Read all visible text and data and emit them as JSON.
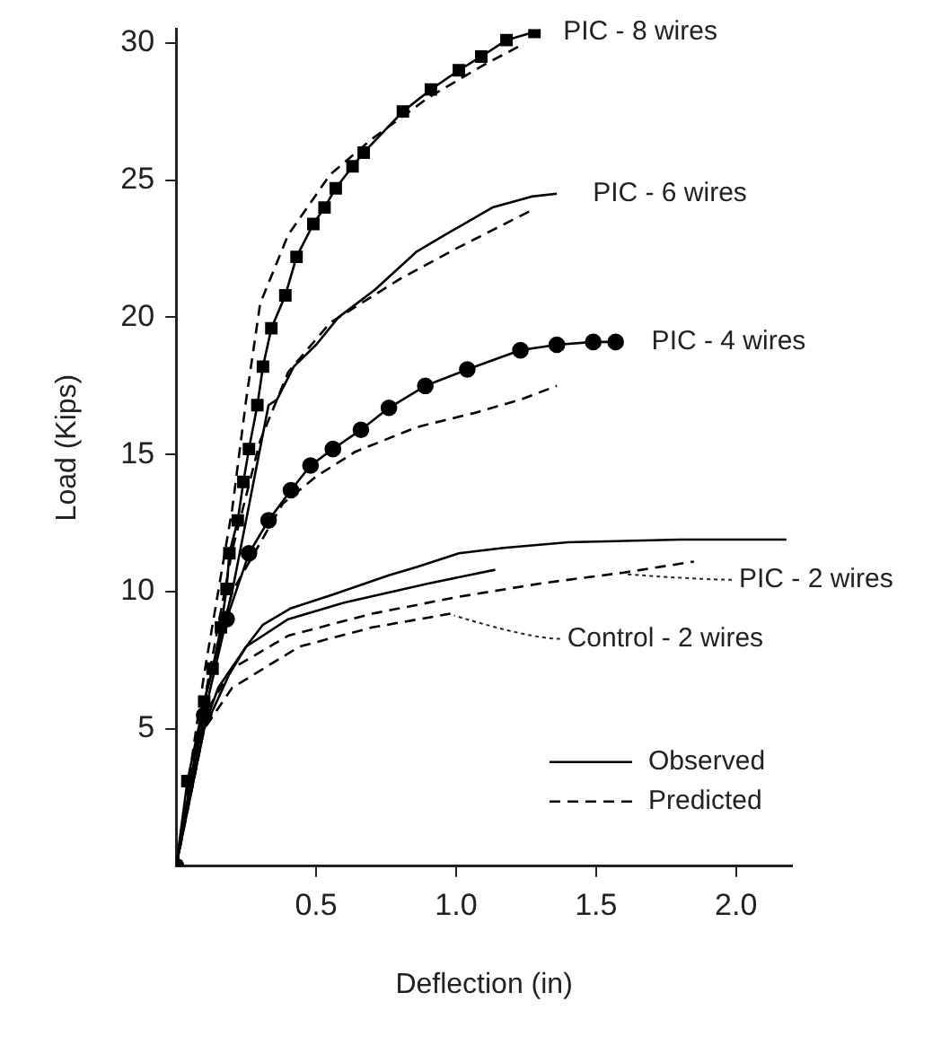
{
  "chart_data": {
    "type": "line",
    "xlabel": "Deflection (in)",
    "ylabel": "Load (Kips)",
    "xlim": [
      0,
      2.2
    ],
    "ylim": [
      0,
      30.5
    ],
    "xticks": [
      0.5,
      {
        "value": 1,
        "label": "1.0"
      },
      1.5,
      {
        "value": 2,
        "label": "2.0"
      }
    ],
    "yticks": [
      5,
      10,
      15,
      20,
      25,
      30
    ],
    "grid": false,
    "legend": "bottom right",
    "series": [
      {
        "name": "Observed",
        "color": "#000000",
        "line_style": "solid",
        "marker": "square",
        "x": [
          0,
          0.04,
          0.1,
          0.13,
          0.16,
          0.18,
          0.19,
          0.22,
          0.24,
          0.26,
          0.29,
          0.31,
          0.34,
          0.39,
          0.43,
          0.49,
          0.53,
          0.57,
          0.63,
          0.67,
          0.81,
          0.91,
          1.01,
          1.09,
          1.18,
          1.28
        ],
        "values": [
          0,
          3.1,
          6,
          7.2,
          8.7,
          10.1,
          11.4,
          12.6,
          14,
          15.2,
          16.8,
          18.2,
          19.6,
          20.8,
          22.2,
          23.4,
          24,
          24.7,
          25.5,
          26,
          27.5,
          28.3,
          29,
          29.5,
          30.1,
          30.4
        ]
      },
      {
        "name": "Predicted",
        "color": "#000000",
        "line_style": "dashed",
        "marker": "none",
        "x": [
          0,
          0.1,
          0.2,
          0.25,
          0.3,
          0.4,
          0.55,
          0.7,
          0.9,
          1.1,
          1.23
        ],
        "values": [
          0,
          7,
          13,
          17,
          20.5,
          23,
          25.2,
          26.5,
          28,
          29.2,
          29.9
        ]
      },
      {
        "color": "#000000",
        "line_style": "solid",
        "marker": "none",
        "x": [
          0,
          0.1,
          0.2,
          0.33,
          0.36,
          0.42,
          0.5,
          0.58,
          0.71,
          0.86,
          0.96,
          1.13,
          1.27,
          1.36
        ],
        "values": [
          0,
          6,
          10,
          16.8,
          17,
          18.2,
          19,
          20,
          21,
          22.4,
          23,
          24,
          24.4,
          24.5
        ]
      },
      {
        "color": "#000000",
        "line_style": "dashed",
        "marker": "none",
        "x": [
          0,
          0.1,
          0.2,
          0.3,
          0.4,
          0.55,
          0.8,
          1,
          1.27
        ],
        "values": [
          0,
          6,
          11.5,
          15.5,
          18,
          19.8,
          21.4,
          22.5,
          23.9
        ]
      },
      {
        "color": "#000000",
        "line_style": "solid",
        "marker": "circle",
        "x": [
          0,
          0.1,
          0.18,
          0.26,
          0.33,
          0.41,
          0.48,
          0.56,
          0.66,
          0.76,
          0.89,
          1.04,
          1.23,
          1.36,
          1.49,
          1.57
        ],
        "values": [
          0,
          5.5,
          9,
          11.4,
          12.6,
          13.7,
          14.6,
          15.2,
          15.9,
          16.7,
          17.5,
          18.1,
          18.8,
          19,
          19.1,
          19.1
        ]
      },
      {
        "color": "#000000",
        "line_style": "dashed",
        "marker": "none",
        "x": [
          0,
          0.1,
          0.2,
          0.38,
          0.5,
          0.64,
          0.86,
          1.06,
          1.23,
          1.36
        ],
        "values": [
          0,
          6,
          10,
          13.2,
          14.2,
          15.1,
          16,
          16.5,
          17,
          17.5
        ]
      },
      {
        "color": "#000000",
        "line_style": "solid",
        "marker": "none",
        "x": [
          0,
          0.1,
          0.19,
          0.25,
          0.31,
          0.41,
          0.56,
          0.76,
          0.86,
          1.01,
          1.17,
          1.4,
          1.8,
          2.18
        ],
        "values": [
          0,
          5,
          7,
          8,
          8.8,
          9.4,
          9.9,
          10.6,
          10.9,
          11.4,
          11.6,
          11.8,
          11.9,
          11.9
        ]
      },
      {
        "color": "#000000",
        "line_style": "dashed",
        "marker": "none",
        "x": [
          0,
          0.1,
          0.2,
          0.4,
          0.7,
          1,
          1.3,
          1.6,
          1.85
        ],
        "values": [
          0,
          5.5,
          7.2,
          8.4,
          9.2,
          9.8,
          10.3,
          10.7,
          11.1
        ]
      },
      {
        "color": "#000000",
        "line_style": "solid",
        "marker": "none",
        "x": [
          0,
          0.08,
          0.15,
          0.25,
          0.4,
          0.6,
          0.9,
          1.14
        ],
        "values": [
          0,
          4.5,
          6.5,
          8,
          9,
          9.6,
          10.3,
          10.8
        ]
      },
      {
        "color": "#000000",
        "line_style": "dashed",
        "marker": "none",
        "x": [
          0,
          0.1,
          0.2,
          0.44,
          0.7,
          0.98
        ],
        "values": [
          0,
          5,
          6.5,
          8,
          8.7,
          9.2
        ]
      }
    ],
    "annotations": [
      "PIC - 8 wires",
      "PIC - 6 wires",
      "PIC - 4 wires",
      {
        "text": "PIC - 2 wires",
        "x": 1.6,
        "y": 10.7
      },
      {
        "text": "Control - 2 wires",
        "x": 0.98,
        "y": 9.2
      }
    ]
  }
}
